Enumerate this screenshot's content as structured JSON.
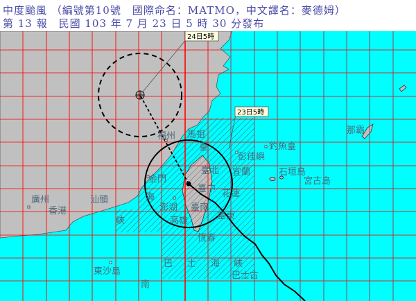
{
  "header": {
    "title": "中度颱風 （編號第10號　國際命名：MATMO，中文譯名：麥德姆）",
    "issued": "第 13 報　民國 103 年 7 月 23 日 5 時 30 分發布"
  },
  "forecast_labels": {
    "current": "23日5時",
    "forecast_24h": "24日5時"
  },
  "places": {
    "fuzhou": "福州",
    "mazu": "馬祖",
    "tai": "臺",
    "taipei": "臺北",
    "pengjia": "彭佳嶼",
    "diaoyu": "釣魚臺",
    "yilan": "宜蘭",
    "ishigaki": "石垣島",
    "miyako": "宮古島",
    "kinmen": "金門",
    "taichung": "臺中",
    "hualien": "花蓮",
    "penghu": "澎湖",
    "tainan": "臺南",
    "kaohsiung": "高雄",
    "taitung": "臺東",
    "hengchun": "恆春",
    "hai": "海",
    "xia": "峽",
    "guangzhou": "廣州",
    "hongkong": "香港",
    "shantou": "汕頭",
    "dongsha": "東沙島",
    "nan": "南",
    "naha": "那霸",
    "bashi": [
      "巴",
      "士",
      "海",
      "峽"
    ],
    "bashigu": "巴士古"
  },
  "colors": {
    "sea": "#00ffff",
    "land": "#c0c0c0",
    "grid_land": "#ff0000",
    "grid_sea": "#a03050",
    "warning_hatch": "#2a6a8a",
    "track": "#000000",
    "title": "#4a4aa8"
  }
}
